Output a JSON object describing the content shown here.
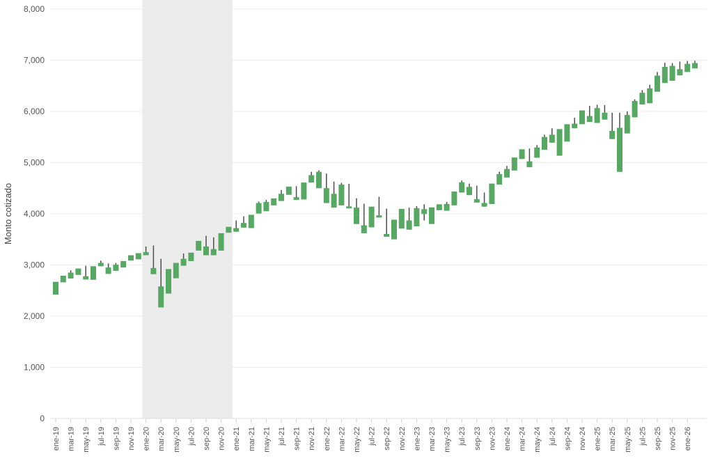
{
  "chart_data": {
    "type": "candlestick",
    "title": "",
    "ylabel": "Monto cotizado",
    "xlabel": "",
    "ylim": [
      0,
      8000
    ],
    "grid": "horizontal",
    "legend": "none",
    "y_ticks": [
      "0",
      "1,000",
      "2,000",
      "3,000",
      "4,000",
      "5,000",
      "6,000",
      "7,000",
      "8,000"
    ],
    "x_tick_labels": [
      "ene-19",
      "mar-19",
      "may-19",
      "jul-19",
      "sep-19",
      "nov-19",
      "ene-20",
      "mar-20",
      "may-20",
      "jul-20",
      "sep-20",
      "nov-20",
      "ene-21",
      "mar-21",
      "may-21",
      "jul-21",
      "sep-21",
      "nov-21",
      "ene-22",
      "mar-22",
      "may-22",
      "jul-22",
      "sep-22",
      "nov-22",
      "ene-23",
      "mar-23",
      "may-23",
      "jul-23",
      "sep-23",
      "nov-23",
      "ene-24",
      "mar-24",
      "may-24",
      "jul-24",
      "sep-24",
      "nov-24",
      "ene-25",
      "mar-25",
      "may-25",
      "jul-25",
      "sep-25",
      "nov-25",
      "ene-26"
    ],
    "months": [
      "ene-19",
      "feb-19",
      "mar-19",
      "abr-19",
      "may-19",
      "jun-19",
      "jul-19",
      "ago-19",
      "sep-19",
      "oct-19",
      "nov-19",
      "dic-19",
      "ene-20",
      "feb-20",
      "mar-20",
      "abr-20",
      "may-20",
      "jun-20",
      "jul-20",
      "ago-20",
      "sep-20",
      "oct-20",
      "nov-20",
      "dic-20",
      "ene-21",
      "feb-21",
      "mar-21",
      "abr-21",
      "may-21",
      "jun-21",
      "jul-21",
      "ago-21",
      "sep-21",
      "oct-21",
      "nov-21",
      "dic-21",
      "ene-22",
      "feb-22",
      "mar-22",
      "abr-22",
      "may-22",
      "jun-22",
      "jul-22",
      "ago-22",
      "sep-22",
      "oct-22",
      "nov-22",
      "dic-22",
      "ene-23",
      "feb-23",
      "mar-23",
      "abr-23",
      "may-23",
      "jun-23",
      "jul-23",
      "ago-23",
      "sep-23",
      "oct-23",
      "nov-23",
      "dic-23",
      "ene-24",
      "feb-24",
      "mar-24",
      "abr-24",
      "may-24",
      "jun-24",
      "jul-24",
      "ago-24",
      "sep-24",
      "oct-24",
      "nov-24",
      "dic-24",
      "ene-25",
      "feb-25",
      "mar-25",
      "abr-25",
      "may-25",
      "jun-25",
      "jul-25",
      "ago-25",
      "sep-25",
      "oct-25",
      "nov-25",
      "dic-25",
      "ene-26",
      "feb-26"
    ],
    "candles_format": [
      "low",
      "body_bottom",
      "body_top",
      "high"
    ],
    "candles": [
      [
        2420,
        2420,
        2670,
        2670
      ],
      [
        2660,
        2660,
        2790,
        2790
      ],
      [
        2735,
        2735,
        2850,
        2895
      ],
      [
        2805,
        2805,
        2930,
        2930
      ],
      [
        2715,
        2715,
        2780,
        2985
      ],
      [
        2710,
        2710,
        2975,
        2975
      ],
      [
        2975,
        2975,
        3040,
        3085
      ],
      [
        2825,
        2825,
        2950,
        3030
      ],
      [
        2885,
        2885,
        3005,
        3040
      ],
      [
        2950,
        2950,
        3075,
        3075
      ],
      [
        3085,
        3085,
        3190,
        3190
      ],
      [
        3110,
        3110,
        3230,
        3230
      ],
      [
        3190,
        3190,
        3250,
        3360
      ],
      [
        2820,
        2820,
        2940,
        3380
      ],
      [
        2170,
        2170,
        2580,
        3120
      ],
      [
        2440,
        2440,
        2920,
        2920
      ],
      [
        2740,
        2740,
        3040,
        3040
      ],
      [
        2985,
        2985,
        3120,
        3225
      ],
      [
        3075,
        3075,
        3240,
        3240
      ],
      [
        3280,
        3280,
        3470,
        3470
      ],
      [
        3190,
        3190,
        3360,
        3570
      ],
      [
        3190,
        3190,
        3310,
        3540
      ],
      [
        3280,
        3280,
        3620,
        3620
      ],
      [
        3630,
        3630,
        3745,
        3745
      ],
      [
        3650,
        3650,
        3720,
        3870
      ],
      [
        3730,
        3730,
        3820,
        3950
      ],
      [
        3720,
        3720,
        3980,
        3980
      ],
      [
        4005,
        4005,
        4210,
        4240
      ],
      [
        4050,
        4050,
        4230,
        4270
      ],
      [
        4165,
        4165,
        4300,
        4300
      ],
      [
        4250,
        4250,
        4390,
        4465
      ],
      [
        4370,
        4370,
        4530,
        4530
      ],
      [
        4270,
        4270,
        4325,
        4540
      ],
      [
        4280,
        4280,
        4610,
        4610
      ],
      [
        4610,
        4610,
        4755,
        4820
      ],
      [
        4500,
        4500,
        4820,
        4850
      ],
      [
        4210,
        4210,
        4500,
        4785
      ],
      [
        4120,
        4120,
        4390,
        4630
      ],
      [
        4165,
        4165,
        4570,
        4605
      ],
      [
        4105,
        4105,
        4145,
        4585
      ],
      [
        3800,
        3800,
        4120,
        4300
      ],
      [
        3620,
        3620,
        3775,
        4195
      ],
      [
        3735,
        3735,
        4140,
        4140
      ],
      [
        3925,
        3925,
        3970,
        4330
      ],
      [
        3550,
        3550,
        3605,
        4100
      ],
      [
        3500,
        3500,
        3885,
        3885
      ],
      [
        3710,
        3710,
        4095,
        4095
      ],
      [
        3690,
        3690,
        3870,
        4120
      ],
      [
        3755,
        3755,
        4110,
        4150
      ],
      [
        3870,
        3995,
        4090,
        4185
      ],
      [
        3800,
        3800,
        4125,
        4125
      ],
      [
        4070,
        4070,
        4185,
        4185
      ],
      [
        4060,
        4060,
        4190,
        4230
      ],
      [
        4165,
        4165,
        4435,
        4435
      ],
      [
        4415,
        4415,
        4615,
        4650
      ],
      [
        4365,
        4365,
        4525,
        4590
      ],
      [
        4220,
        4220,
        4285,
        4550
      ],
      [
        4140,
        4140,
        4210,
        4415
      ],
      [
        4190,
        4190,
        4590,
        4590
      ],
      [
        4570,
        4570,
        4775,
        4820
      ],
      [
        4710,
        4710,
        4875,
        4935
      ],
      [
        4845,
        4845,
        5100,
        5100
      ],
      [
        5070,
        5070,
        5260,
        5260
      ],
      [
        4910,
        4910,
        5025,
        5275
      ],
      [
        5095,
        5095,
        5295,
        5340
      ],
      [
        5250,
        5250,
        5500,
        5545
      ],
      [
        5390,
        5390,
        5545,
        5670
      ],
      [
        5135,
        5135,
        5655,
        5655
      ],
      [
        5410,
        5410,
        5750,
        5750
      ],
      [
        5670,
        5670,
        5760,
        5875
      ],
      [
        5750,
        5750,
        6020,
        6020
      ],
      [
        5795,
        5795,
        5910,
        6110
      ],
      [
        5775,
        5775,
        6065,
        6130
      ],
      [
        5840,
        5840,
        5975,
        6125
      ],
      [
        5460,
        5460,
        5620,
        5975
      ],
      [
        4820,
        4820,
        5680,
        5975
      ],
      [
        5570,
        5570,
        5930,
        6000
      ],
      [
        5885,
        5885,
        6205,
        6235
      ],
      [
        6135,
        6135,
        6365,
        6415
      ],
      [
        6160,
        6160,
        6450,
        6520
      ],
      [
        6385,
        6385,
        6700,
        6770
      ],
      [
        6555,
        6555,
        6870,
        6950
      ],
      [
        6600,
        6600,
        6890,
        6945
      ],
      [
        6705,
        6705,
        6825,
        6975
      ],
      [
        6770,
        6770,
        6930,
        6985
      ],
      [
        6840,
        6840,
        6945,
        6990
      ]
    ],
    "shaded_region": {
      "from_month": "ene-20",
      "to_month": "dic-20",
      "color": "#ececec"
    },
    "colors": {
      "candle_body": "#57a863",
      "candle_wick": "#4d4d4d",
      "gridline": "#ececec",
      "axis_line": "#dcdcdc",
      "tick_mark": "#cccccc",
      "axis_text": "#555555",
      "background": "#ffffff"
    }
  }
}
